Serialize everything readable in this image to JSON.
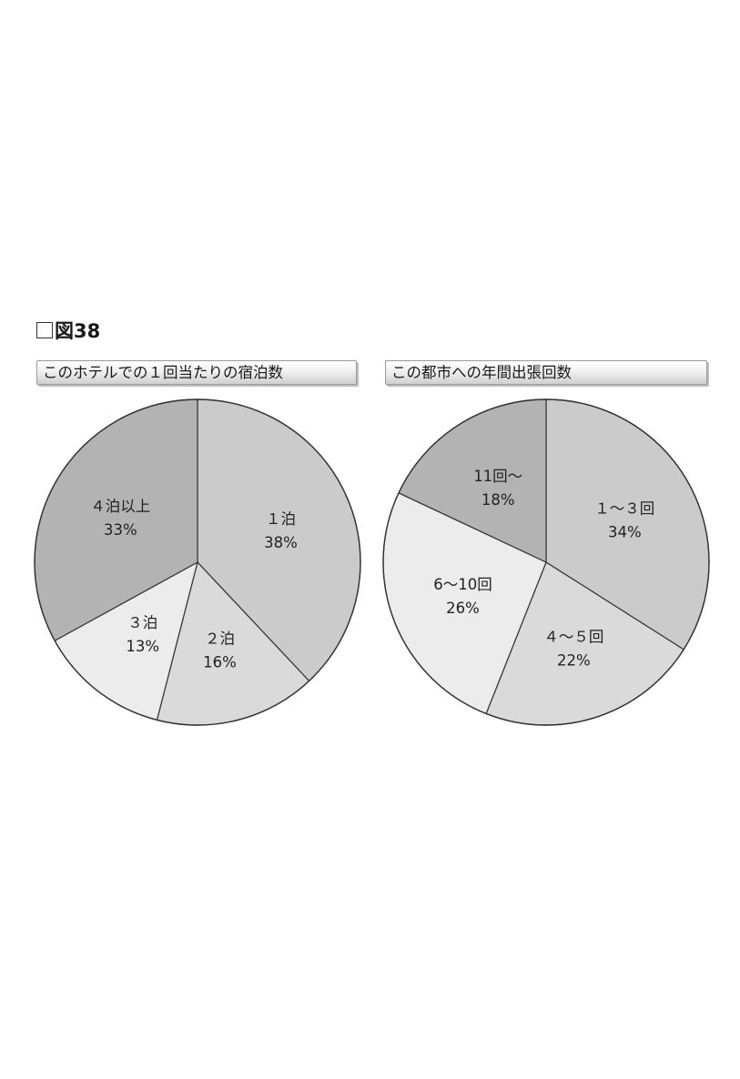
{
  "figure": {
    "label": "図38"
  },
  "chart_data": [
    {
      "type": "pie",
      "title": "このホテルでの１回当たりの宿泊数",
      "slices": [
        {
          "name": "１泊",
          "value": 38,
          "pct_label": "38%",
          "color": "#cbcbcb"
        },
        {
          "name": "２泊",
          "value": 16,
          "pct_label": "16%",
          "color": "#dadada"
        },
        {
          "name": "３泊",
          "value": 13,
          "pct_label": "13%",
          "color": "#ececec"
        },
        {
          "name": "４泊以上",
          "value": 33,
          "pct_label": "33%",
          "color": "#b3b3b3"
        }
      ]
    },
    {
      "type": "pie",
      "title": "この都市への年間出張回数",
      "slices": [
        {
          "name": "１～３回",
          "value": 34,
          "pct_label": "34%",
          "color": "#cbcbcb"
        },
        {
          "name": "４～５回",
          "value": 22,
          "pct_label": "22%",
          "color": "#dadada"
        },
        {
          "name": "6～10回",
          "value": 26,
          "pct_label": "26%",
          "color": "#ececec"
        },
        {
          "name": "11回～",
          "value": 18,
          "pct_label": "18%",
          "color": "#b3b3b3"
        }
      ]
    }
  ]
}
